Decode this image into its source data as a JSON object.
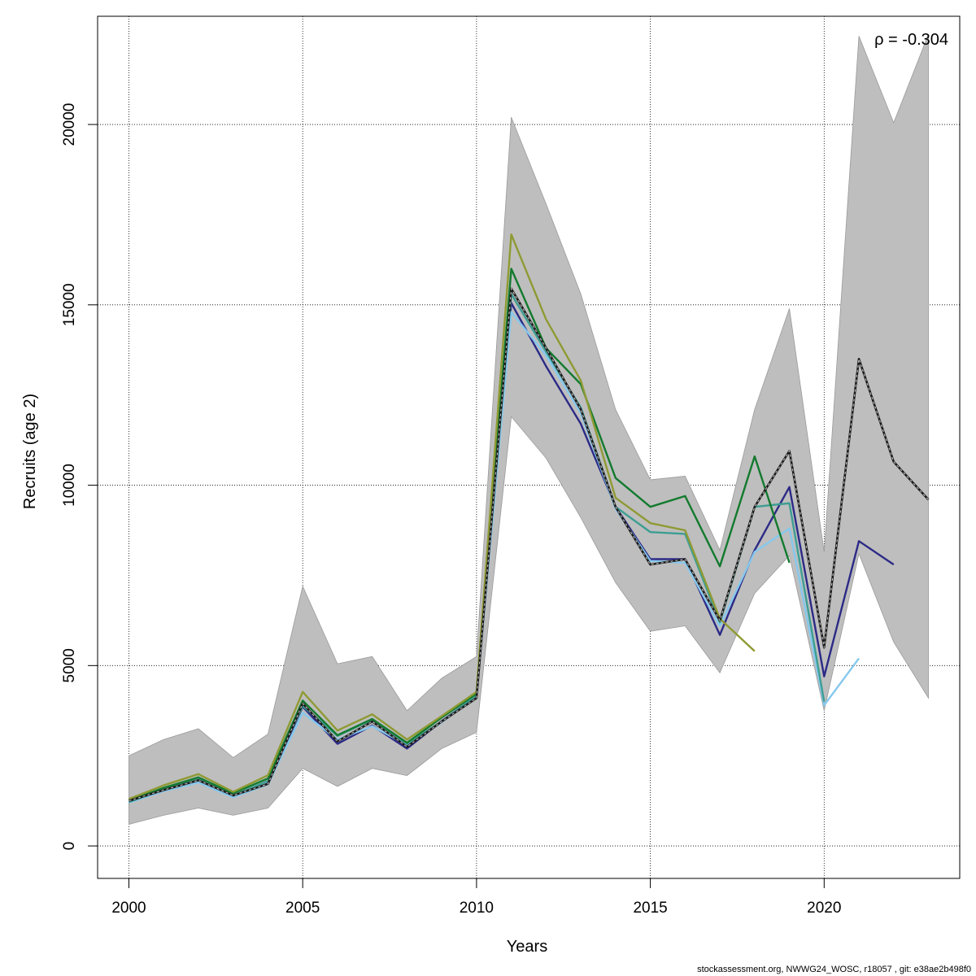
{
  "chart_data": {
    "type": "line",
    "xlabel": "Years",
    "ylabel": "Recruits (age 2)",
    "xlim": [
      1999.1,
      2023.9
    ],
    "ylim": [
      -900,
      23000
    ],
    "x_ticks": [
      2000,
      2005,
      2010,
      2015,
      2020
    ],
    "y_ticks": [
      0,
      5000,
      10000,
      15000,
      20000
    ],
    "grid": true,
    "annotation": "ρ = -0.304",
    "footer": "stockassessment.org, NWWG24_WOSC, r18057 , git: e38ae2b498f0",
    "confidence_band": {
      "color": "#bebebe",
      "x": [
        2000,
        2001,
        2002,
        2003,
        2004,
        2005,
        2006,
        2007,
        2008,
        2009,
        2010,
        2011,
        2012,
        2013,
        2014,
        2015,
        2016,
        2017,
        2018,
        2019,
        2020,
        2021,
        2022,
        2023
      ],
      "upper": [
        2500,
        2950,
        3250,
        2450,
        3100,
        7200,
        5050,
        5250,
        3750,
        4650,
        5250,
        20200,
        17800,
        15300,
        12100,
        10150,
        10250,
        8200,
        12100,
        14900,
        8150,
        22450,
        20050,
        22500
      ],
      "lower": [
        600,
        850,
        1050,
        850,
        1050,
        2150,
        1650,
        2150,
        1950,
        2700,
        3150,
        11900,
        10750,
        9100,
        7300,
        5950,
        6100,
        4800,
        7000,
        8050,
        3750,
        8100,
        5650,
        4100
      ]
    },
    "series": [
      {
        "color": "#1a1a1a",
        "dashed": true,
        "x": [
          2000,
          2001,
          2002,
          2003,
          2004,
          2005,
          2006,
          2007,
          2008,
          2009,
          2010,
          2011,
          2012,
          2013,
          2014,
          2015,
          2016,
          2017,
          2018,
          2019,
          2020,
          2021,
          2022,
          2023
        ],
        "values": [
          1250,
          1550,
          1820,
          1400,
          1720,
          3950,
          2900,
          3450,
          2750,
          3450,
          4100,
          15450,
          13800,
          12100,
          9400,
          7800,
          7950,
          6250,
          9400,
          10950,
          5500,
          13500,
          10650,
          9600
        ]
      },
      {
        "color": "#2c2a86",
        "x": [
          2000,
          2001,
          2002,
          2003,
          2004,
          2005,
          2006,
          2007,
          2008,
          2009,
          2010,
          2011,
          2012,
          2013,
          2014,
          2015,
          2016,
          2017,
          2018,
          2019,
          2020,
          2021,
          2022
        ],
        "values": [
          1250,
          1580,
          1830,
          1380,
          1730,
          3860,
          2830,
          3340,
          2700,
          3460,
          4170,
          15050,
          13300,
          11700,
          9400,
          7950,
          7950,
          5850,
          8200,
          9950,
          4700,
          8450,
          7800
        ]
      },
      {
        "color": "#86c8ed",
        "x": [
          2000,
          2001,
          2002,
          2003,
          2004,
          2005,
          2006,
          2007,
          2008,
          2009,
          2010,
          2011,
          2012,
          2013,
          2014,
          2015,
          2016,
          2017,
          2018,
          2019,
          2020,
          2021
        ],
        "values": [
          1200,
          1520,
          1760,
          1350,
          1710,
          3690,
          2950,
          3320,
          2800,
          3430,
          4150,
          14800,
          13600,
          12000,
          9350,
          7900,
          7850,
          6100,
          8150,
          8800,
          3900,
          5200
        ]
      },
      {
        "color": "#3d9e93",
        "x": [
          2000,
          2001,
          2002,
          2003,
          2004,
          2005,
          2006,
          2007,
          2008,
          2009,
          2010,
          2011,
          2012,
          2013,
          2014,
          2015,
          2016,
          2017,
          2018,
          2019,
          2020
        ],
        "values": [
          1220,
          1560,
          1840,
          1400,
          1800,
          3880,
          3050,
          3500,
          2830,
          3450,
          4180,
          15300,
          13700,
          12150,
          9400,
          8700,
          8650,
          6200,
          9400,
          9500,
          4000
        ]
      },
      {
        "color": "#137a2e",
        "x": [
          2000,
          2001,
          2002,
          2003,
          2004,
          2005,
          2006,
          2007,
          2008,
          2009,
          2010,
          2011,
          2012,
          2013,
          2014,
          2015,
          2016,
          2017,
          2018,
          2019
        ],
        "values": [
          1260,
          1610,
          1900,
          1460,
          1870,
          4030,
          3070,
          3520,
          2860,
          3560,
          4220,
          16000,
          13800,
          12800,
          10200,
          9400,
          9700,
          7750,
          10800,
          7850
        ]
      },
      {
        "color": "#8f9a33",
        "x": [
          2000,
          2001,
          2002,
          2003,
          2004,
          2005,
          2006,
          2007,
          2008,
          2009,
          2010,
          2011,
          2012,
          2013,
          2014,
          2015,
          2016,
          2017,
          2018
        ],
        "values": [
          1300,
          1680,
          1990,
          1500,
          1960,
          4270,
          3200,
          3650,
          2950,
          3600,
          4270,
          16950,
          14600,
          12900,
          9650,
          8950,
          8750,
          6300,
          5400
        ]
      }
    ]
  }
}
